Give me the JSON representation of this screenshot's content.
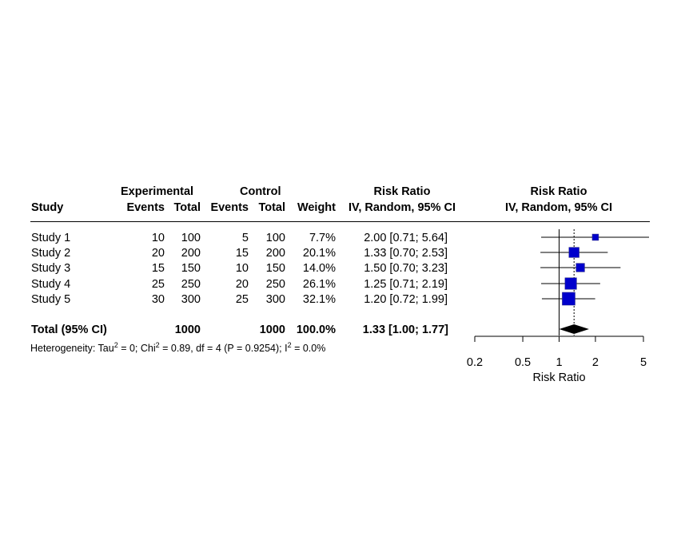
{
  "chart_data": {
    "type": "forest",
    "headers": {
      "study": "Study",
      "experimental": "Experimental",
      "control": "Control",
      "events": "Events",
      "total": "Total",
      "weight": "Weight",
      "risk_ratio": "Risk Ratio",
      "method": "IV, Random, 95% CI"
    },
    "studies": [
      {
        "name": "Study 1",
        "exp_events": "10",
        "exp_total": "100",
        "ctrl_events": "5",
        "ctrl_total": "100",
        "weight": "7.7%",
        "ci_text": "2.00 [0.71; 5.64]",
        "rr": 2.0,
        "lo": 0.71,
        "hi": 5.64,
        "w": 7.7
      },
      {
        "name": "Study 2",
        "exp_events": "20",
        "exp_total": "200",
        "ctrl_events": "15",
        "ctrl_total": "200",
        "weight": "20.1%",
        "ci_text": "1.33 [0.70; 2.53]",
        "rr": 1.33,
        "lo": 0.7,
        "hi": 2.53,
        "w": 20.1
      },
      {
        "name": "Study 3",
        "exp_events": "15",
        "exp_total": "150",
        "ctrl_events": "10",
        "ctrl_total": "150",
        "weight": "14.0%",
        "ci_text": "1.50 [0.70; 3.23]",
        "rr": 1.5,
        "lo": 0.7,
        "hi": 3.23,
        "w": 14.0
      },
      {
        "name": "Study 4",
        "exp_events": "25",
        "exp_total": "250",
        "ctrl_events": "20",
        "ctrl_total": "250",
        "weight": "26.1%",
        "ci_text": "1.25 [0.71; 2.19]",
        "rr": 1.25,
        "lo": 0.71,
        "hi": 2.19,
        "w": 26.1
      },
      {
        "name": "Study 5",
        "exp_events": "30",
        "exp_total": "300",
        "ctrl_events": "25",
        "ctrl_total": "300",
        "weight": "32.1%",
        "ci_text": "1.20 [0.72; 1.99]",
        "rr": 1.2,
        "lo": 0.72,
        "hi": 1.99,
        "w": 32.1
      }
    ],
    "total": {
      "label": "Total (95% CI)",
      "exp_total": "1000",
      "ctrl_total": "1000",
      "weight": "100.0%",
      "ci_text": "1.33 [1.00; 1.77]",
      "rr": 1.33,
      "lo": 1.0,
      "hi": 1.77
    },
    "heterogeneity": {
      "prefix": "Heterogeneity: Tau",
      "tau_sup": "2",
      "mid1": " = 0; Chi",
      "chi_sup": "2",
      "mid2": " = 0.89, df = 4 (P = 0.9254); I",
      "i_sup": "2",
      "suffix": " = 0.0%"
    },
    "x_axis": {
      "label": "Risk Ratio",
      "scale": "log",
      "ticks": [
        0.2,
        0.5,
        1,
        2,
        5
      ],
      "tick_labels": [
        "0.2",
        "0.5",
        "1",
        "2",
        "5"
      ],
      "range": [
        0.2,
        5
      ]
    },
    "colors": {
      "square": "#0000cc",
      "diamond": "#000000"
    }
  }
}
